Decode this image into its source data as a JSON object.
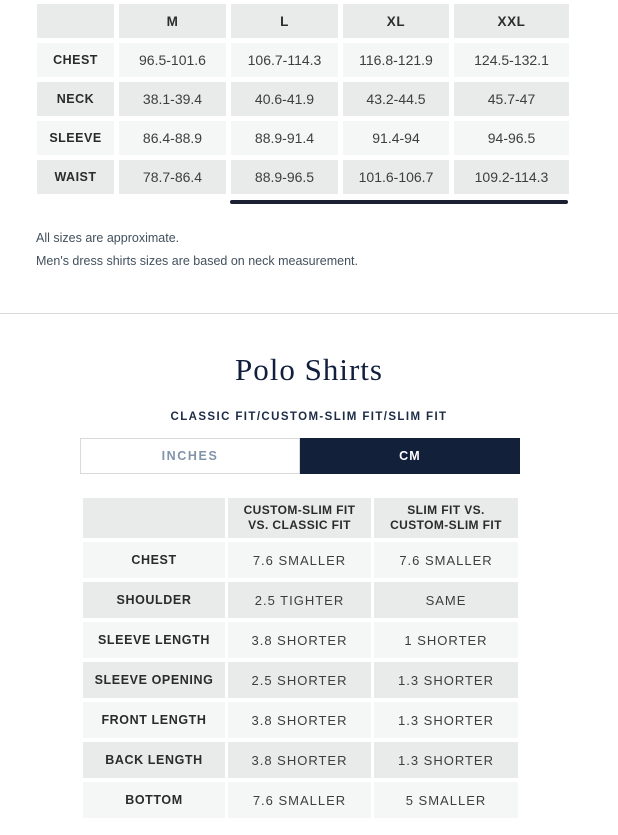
{
  "colors": {
    "navy_active_tab": "#13203a",
    "title_navy": "#101f3c",
    "scrollbar_thumb": "#1b2133",
    "cell_gray": "#e9eaea",
    "cell_light": "#f5f6f6",
    "inches_text": "#8294aa",
    "note_text": "#42505d",
    "divider": "#dadada"
  },
  "size_chart": {
    "columns": [
      "M",
      "L",
      "XL",
      "XXL"
    ],
    "rows": [
      {
        "label": "CHEST",
        "values": [
          "96.5-101.6",
          "106.7-114.3",
          "116.8-121.9",
          "124.5-132.1"
        ]
      },
      {
        "label": "NECK",
        "values": [
          "38.1-39.4",
          "40.6-41.9",
          "43.2-44.5",
          "45.7-47"
        ]
      },
      {
        "label": "SLEEVE",
        "values": [
          "86.4-88.9",
          "88.9-91.4",
          "91.4-94",
          "94-96.5"
        ]
      },
      {
        "label": "WAIST",
        "values": [
          "78.7-86.4",
          "88.9-96.5",
          "101.6-106.7",
          "109.2-114.3"
        ]
      }
    ]
  },
  "notes": [
    "All sizes are approximate.",
    "Men's dress shirts sizes are based on neck measurement."
  ],
  "polo": {
    "title": "Polo Shirts",
    "subtitle": "CLASSIC FIT/CUSTOM-SLIM FIT/SLIM FIT",
    "toggle": {
      "inches": "INCHES",
      "cm": "CM",
      "selected": "CM"
    },
    "fit_table": {
      "columns": [
        "CUSTOM-SLIM FIT\nVS. CLASSIC FIT",
        "SLIM FIT VS.\nCUSTOM-SLIM FIT"
      ],
      "rows": [
        {
          "label": "CHEST",
          "values": [
            "7.6 SMALLER",
            "7.6 SMALLER"
          ]
        },
        {
          "label": "SHOULDER",
          "values": [
            "2.5 TIGHTER",
            "SAME"
          ]
        },
        {
          "label": "SLEEVE LENGTH",
          "values": [
            "3.8 SHORTER",
            "1 SHORTER"
          ]
        },
        {
          "label": "SLEEVE OPENING",
          "values": [
            "2.5 SHORTER",
            "1.3 SHORTER"
          ]
        },
        {
          "label": "FRONT LENGTH",
          "values": [
            "3.8 SHORTER",
            "1.3 SHORTER"
          ]
        },
        {
          "label": "BACK LENGTH",
          "values": [
            "3.8 SHORTER",
            "1.3 SHORTER"
          ]
        },
        {
          "label": "BOTTOM",
          "values": [
            "7.6 SMALLER",
            "5 SMALLER"
          ]
        }
      ]
    }
  }
}
